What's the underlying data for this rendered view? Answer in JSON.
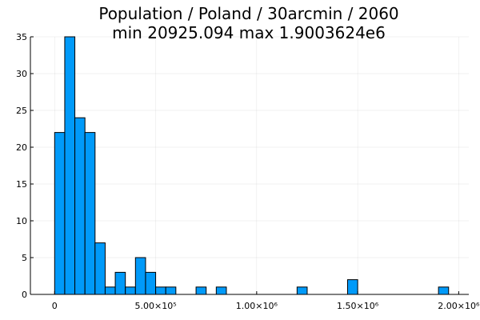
{
  "chart_data": {
    "type": "bar",
    "title": "Population / Poland / 30arcmin / 2060",
    "subtitle": "min 20925.094  max 1.9003624e6",
    "xlabel": "",
    "ylabel": "",
    "bin_width": 50000,
    "bins_start": [
      0,
      50000,
      100000,
      150000,
      200000,
      250000,
      300000,
      350000,
      400000,
      450000,
      500000,
      550000,
      700000,
      800000,
      1200000,
      1450000,
      1900000
    ],
    "values": [
      22,
      35,
      24,
      22,
      7,
      1,
      3,
      1,
      5,
      3,
      1,
      1,
      1,
      1,
      1,
      2,
      1
    ],
    "xlim": [
      -120000,
      2050000
    ],
    "ylim": [
      0,
      35
    ],
    "x_ticks": [
      {
        "value": 0,
        "label": "0"
      },
      {
        "value": 500000,
        "label": "5.00×10⁵"
      },
      {
        "value": 1000000,
        "label": "1.00×10⁶"
      },
      {
        "value": 1500000,
        "label": "1.50×10⁶"
      },
      {
        "value": 2000000,
        "label": "2.00×10⁶"
      }
    ],
    "y_ticks": [
      0,
      5,
      10,
      15,
      20,
      25,
      30,
      35
    ],
    "bar_color": "#009af9",
    "grid": true,
    "legend": "none"
  }
}
